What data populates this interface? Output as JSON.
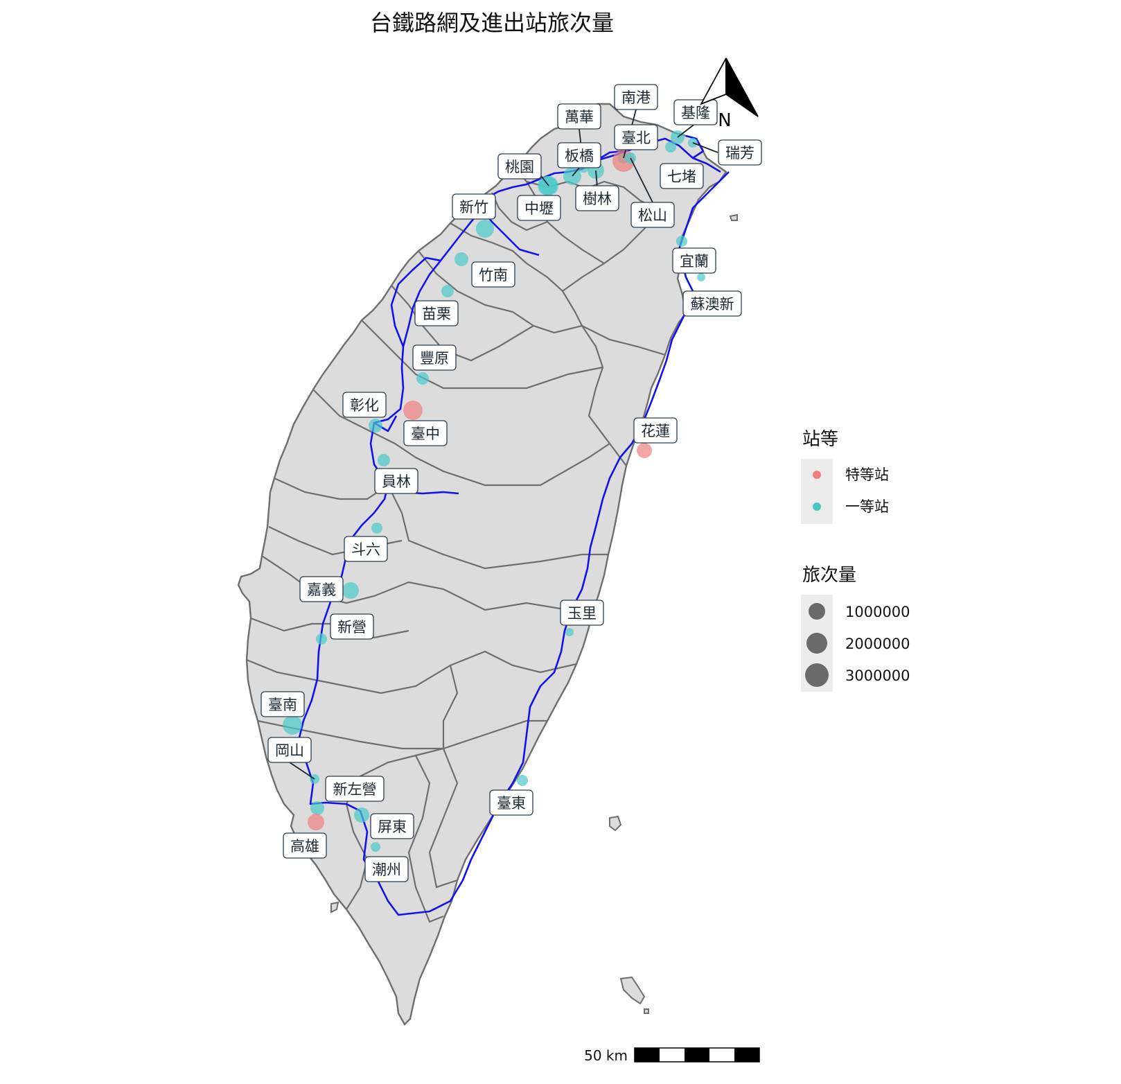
{
  "title": "台鐵路網及進出站旅次量",
  "colors": {
    "land": "#dcdcdc",
    "border": "#6e6e6e",
    "rail": "#1212f0",
    "special": "#f08080",
    "first": "#48c9c9",
    "panel": "#ececec"
  },
  "north_arrow": {
    "label": "N"
  },
  "scale_bar": {
    "label": "50 km"
  },
  "legend": {
    "class_title": "站等",
    "class_items": [
      {
        "key": "special",
        "label": "特等站"
      },
      {
        "key": "first",
        "label": "一等站"
      }
    ],
    "size_title": "旅次量",
    "size_items": [
      {
        "value": 1000000,
        "label": "1000000"
      },
      {
        "value": 2000000,
        "label": "2000000"
      },
      {
        "value": 3000000,
        "label": "3000000"
      }
    ]
  },
  "stations": [
    {
      "name": "南港",
      "grade": "first"
    },
    {
      "name": "萬華",
      "grade": "first"
    },
    {
      "name": "基隆",
      "grade": "first"
    },
    {
      "name": "臺北",
      "grade": "special"
    },
    {
      "name": "瑞芳",
      "grade": "first"
    },
    {
      "name": "桃園",
      "grade": "first"
    },
    {
      "name": "板橋",
      "grade": "first"
    },
    {
      "name": "七堵",
      "grade": "first"
    },
    {
      "name": "樹林",
      "grade": "first"
    },
    {
      "name": "新竹",
      "grade": "first"
    },
    {
      "name": "中壢",
      "grade": "first"
    },
    {
      "name": "松山",
      "grade": "first"
    },
    {
      "name": "宜蘭",
      "grade": "first"
    },
    {
      "name": "竹南",
      "grade": "first"
    },
    {
      "name": "蘇澳新",
      "grade": "first"
    },
    {
      "name": "苗栗",
      "grade": "first"
    },
    {
      "name": "豐原",
      "grade": "first"
    },
    {
      "name": "彰化",
      "grade": "first"
    },
    {
      "name": "臺中",
      "grade": "special"
    },
    {
      "name": "花蓮",
      "grade": "special"
    },
    {
      "name": "員林",
      "grade": "first"
    },
    {
      "name": "斗六",
      "grade": "first"
    },
    {
      "name": "嘉義",
      "grade": "first"
    },
    {
      "name": "玉里",
      "grade": "first"
    },
    {
      "name": "新營",
      "grade": "first"
    },
    {
      "name": "臺南",
      "grade": "first"
    },
    {
      "name": "岡山",
      "grade": "first"
    },
    {
      "name": "新左營",
      "grade": "first"
    },
    {
      "name": "臺東",
      "grade": "first"
    },
    {
      "name": "屏東",
      "grade": "first"
    },
    {
      "name": "高雄",
      "grade": "special"
    },
    {
      "name": "潮州",
      "grade": "first"
    }
  ]
}
